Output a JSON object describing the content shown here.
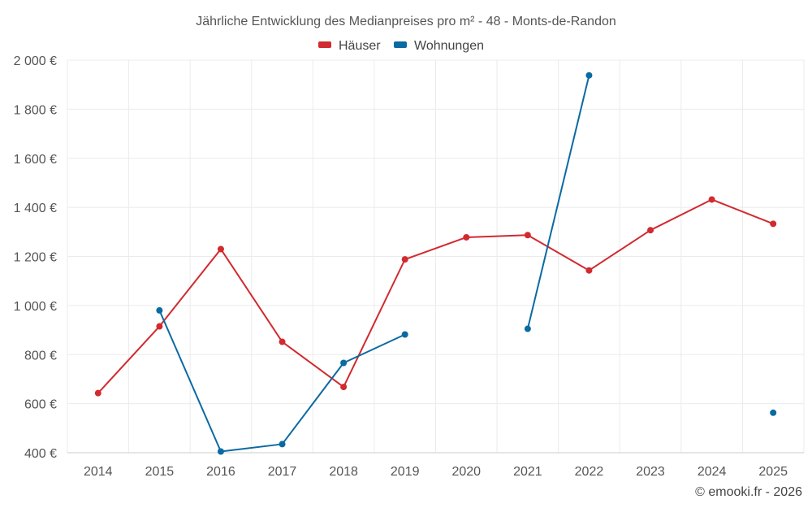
{
  "chart_data": {
    "type": "line",
    "title": "Jährliche Entwicklung des Medianpreises pro m² - 48 - Monts-de-Randon",
    "x": [
      "2014",
      "2015",
      "2016",
      "2017",
      "2018",
      "2019",
      "2020",
      "2021",
      "2022",
      "2023",
      "2024",
      "2025"
    ],
    "ylim": [
      400,
      2000
    ],
    "yticks": [
      400,
      600,
      800,
      1000,
      1200,
      1400,
      1600,
      1800,
      2000
    ],
    "ytick_labels": [
      "400 €",
      "600 €",
      "800 €",
      "1 000 €",
      "1 200 €",
      "1 400 €",
      "1 600 €",
      "1 800 €",
      "2 000 €"
    ],
    "grid": true,
    "legend_position": "top-center",
    "series": [
      {
        "name": "Häuser",
        "color": "#d12a2f",
        "values": [
          643,
          915,
          1230,
          852,
          668,
          1188,
          1278,
          1287,
          1143,
          1307,
          1432,
          1333
        ]
      },
      {
        "name": "Wohnungen",
        "color": "#0a6aa1",
        "values": [
          null,
          980,
          405,
          435,
          766,
          882,
          null,
          905,
          1938,
          null,
          null,
          563
        ]
      }
    ],
    "credit": "© emooki.fr - 2026"
  }
}
